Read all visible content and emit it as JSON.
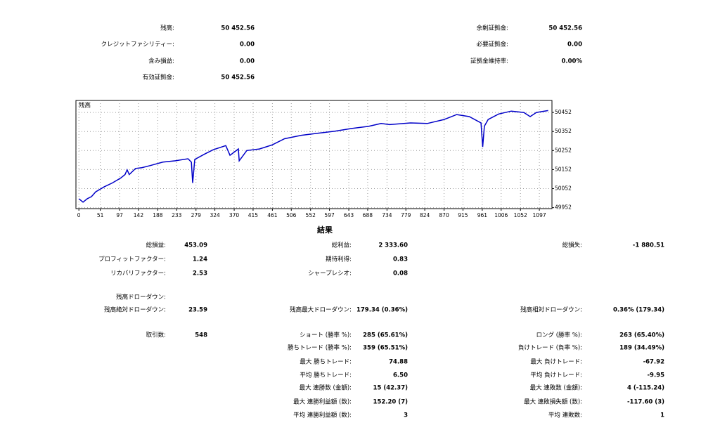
{
  "account": {
    "left": [
      [
        "残高:",
        "50 452.56"
      ],
      [
        "クレジットファシリティー:",
        "0.00"
      ],
      [
        "含み損益:",
        "0.00"
      ],
      [
        "有効証拠金:",
        "50 452.56"
      ]
    ],
    "right": [
      [
        "余剰証拠金:",
        "50 452.56"
      ],
      [
        "必要証拠金:",
        "0.00"
      ],
      [
        "証拠金維持率:",
        "0.00%"
      ]
    ]
  },
  "chart_data": {
    "type": "line",
    "xlim": [
      -7,
      1127
    ],
    "ylim": [
      49947,
      50515
    ],
    "xticks": [
      0,
      51,
      97,
      142,
      188,
      233,
      279,
      324,
      370,
      415,
      461,
      506,
      552,
      597,
      643,
      688,
      734,
      779,
      824,
      870,
      915,
      961,
      1006,
      1052,
      1097
    ],
    "yticks": [
      49952,
      50052,
      50152,
      50252,
      50352,
      50452
    ],
    "grid": true,
    "x": [
      0,
      10,
      20,
      30,
      40,
      60,
      80,
      100,
      110,
      115,
      120,
      135,
      150,
      170,
      200,
      230,
      260,
      268,
      271,
      276,
      300,
      320,
      350,
      360,
      380,
      382,
      400,
      430,
      460,
      490,
      530,
      570,
      610,
      650,
      690,
      720,
      740,
      790,
      830,
      870,
      900,
      930,
      958,
      962,
      966,
      975,
      1000,
      1030,
      1060,
      1075,
      1090,
      1118
    ],
    "series": [
      {
        "name": "残高",
        "color": "#0000c8",
        "values": [
          49999,
          49981,
          49999,
          50010,
          50035,
          50061,
          50082,
          50108,
          50126,
          50151,
          50126,
          50158,
          50162,
          50173,
          50191,
          50198,
          50209,
          50191,
          50082,
          50205,
          50234,
          50256,
          50278,
          50227,
          50260,
          50198,
          50252,
          50260,
          50281,
          50314,
          50332,
          50343,
          50354,
          50368,
          50379,
          50394,
          50388,
          50397,
          50394,
          50415,
          50441,
          50430,
          50397,
          50271,
          50380,
          50415,
          50444,
          50459,
          50452,
          50430,
          50452,
          50462
        ]
      }
    ]
  },
  "results": {
    "title": "結果",
    "rows": [
      {
        "c1": [
          "総損益:",
          "453.09"
        ],
        "c2": [
          "総利益:",
          "2 333.60"
        ],
        "c3": [
          "総損失:",
          "-1 880.51"
        ]
      },
      {
        "c1": [
          "プロフィットファクター:",
          "1.24"
        ],
        "c2": [
          "期待利得:",
          "0.83"
        ]
      },
      {
        "c1": [
          "リカバリファクター:",
          "2.53"
        ],
        "c2": [
          "シャープレシオ:",
          "0.08"
        ]
      },
      {
        "c1": [
          "残高ドローダウン:"
        ]
      },
      {
        "c1": [
          "残高絶対ドローダウン:",
          "23.59"
        ],
        "c2": [
          "残高最大ドローダウン:",
          "179.34 (0.36%)"
        ],
        "c3": [
          "残高相対ドローダウン:",
          "0.36% (179.34)"
        ]
      },
      {
        "c1": [
          "取引数:",
          "548"
        ],
        "c2": [
          "ショート (勝率 %):",
          "285 (65.61%)"
        ],
        "c3": [
          "ロング (勝率 %):",
          "263 (65.40%)"
        ]
      },
      {
        "c2": [
          "勝ちトレード (勝率 %):",
          "359 (65.51%)"
        ],
        "c3": [
          "負けトレード (負率 %):",
          "189 (34.49%)"
        ]
      },
      {
        "c2": [
          "最大 勝ちトレード:",
          "74.88"
        ],
        "c3": [
          "最大 負けトレード:",
          "-67.92"
        ]
      },
      {
        "c2": [
          "平均 勝ちトレード:",
          "6.50"
        ],
        "c3": [
          "平均 負けトレード:",
          "-9.95"
        ]
      },
      {
        "c2": [
          "最大 連勝数 (金額):",
          "15 (42.37)"
        ],
        "c3": [
          "最大 連敗数 (金額):",
          "4 (-115.24)"
        ]
      },
      {
        "c2": [
          "最大 連勝利益額 (数):",
          "152.20 (7)"
        ],
        "c3": [
          "最大 連敗損失額 (数):",
          "-117.60 (3)"
        ]
      },
      {
        "c2": [
          "平均 連勝利益額 (数):",
          "3"
        ],
        "c3": [
          "平均 連敗数:",
          "1"
        ]
      }
    ]
  }
}
